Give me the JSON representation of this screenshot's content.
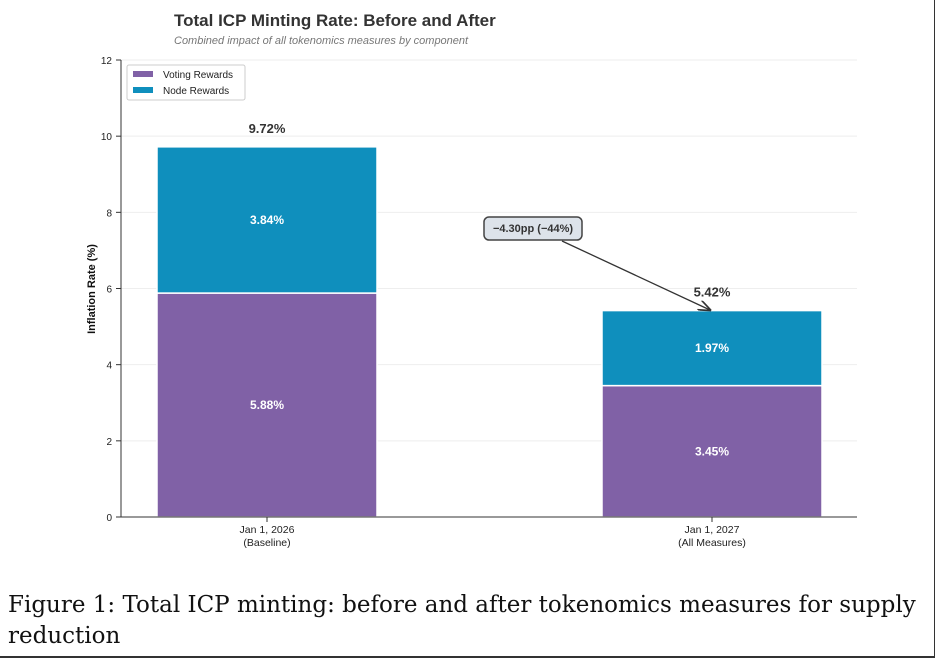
{
  "chart_data": {
    "type": "bar",
    "stacked": true,
    "title": "Total ICP Minting Rate: Before and After",
    "subtitle": "Combined impact of all tokenomics measures by component",
    "ylabel": "Inflation Rate (%)",
    "xlabel": "",
    "ylim": [
      0,
      12
    ],
    "yticks": [
      0,
      2,
      4,
      6,
      8,
      10,
      12
    ],
    "grid": "horizontal",
    "legend_placement": "top-left",
    "categories": [
      {
        "line1": "Jan 1, 2026",
        "line2": "(Baseline)"
      },
      {
        "line1": "Jan 1, 2027",
        "line2": "(All Measures)"
      }
    ],
    "series": [
      {
        "name": "Voting Rewards",
        "color": "#8061a6",
        "values": [
          5.88,
          3.45
        ],
        "labels": [
          "5.88%",
          "3.45%"
        ]
      },
      {
        "name": "Node Rewards",
        "color": "#0f8fbd",
        "values": [
          3.84,
          1.97
        ],
        "labels": [
          "3.84%",
          "1.97%"
        ]
      }
    ],
    "totals": [
      "9.72%",
      "5.42%"
    ],
    "annotation": {
      "text": "−4.30pp (−44%)",
      "points_to_category": 1,
      "points_to_value": 5.42
    }
  },
  "caption": {
    "text": "Figure 1: Total ICP minting: before and after tokenomics measures for supply reduction"
  }
}
